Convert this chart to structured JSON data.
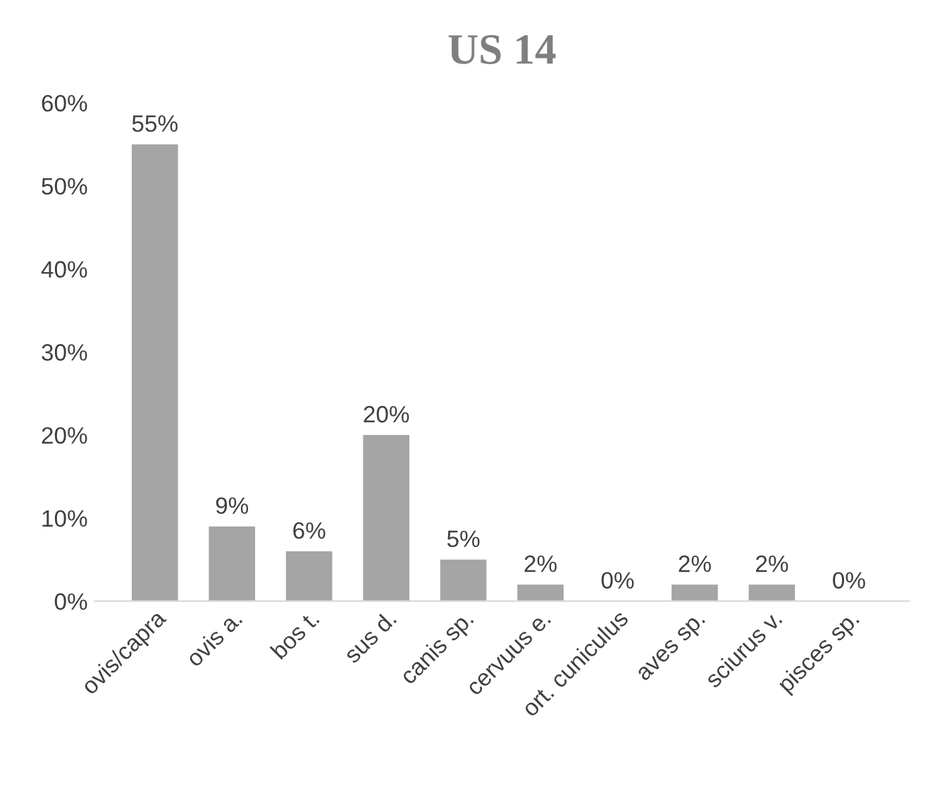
{
  "chart_data": {
    "type": "bar",
    "title": "US 14",
    "categories": [
      "ovis/capra",
      "ovis a.",
      "bos t.",
      "sus d.",
      "canis sp.",
      "cervuus e.",
      "ort. cuniculus",
      "aves sp.",
      "sciurus v.",
      "pisces sp."
    ],
    "values": [
      55,
      9,
      6,
      20,
      5,
      2,
      0,
      2,
      2,
      0
    ],
    "value_labels": [
      "55%",
      "9%",
      "6%",
      "20%",
      "5%",
      "2%",
      "0%",
      "2%",
      "2%",
      "0%"
    ],
    "color": "#a5a5a5",
    "ylim": [
      0,
      60
    ],
    "yticks": [
      {
        "value": 0,
        "label": "0%"
      },
      {
        "value": 10,
        "label": "10%"
      },
      {
        "value": 20,
        "label": "20%"
      },
      {
        "value": 30,
        "label": "30%"
      },
      {
        "value": 40,
        "label": "40%"
      },
      {
        "value": 50,
        "label": "50%"
      },
      {
        "value": 60,
        "label": "60%"
      }
    ],
    "grid": false,
    "legend": false
  }
}
